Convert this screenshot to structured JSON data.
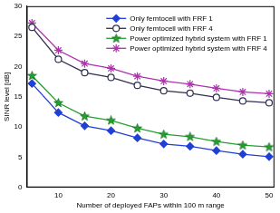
{
  "chart_data": {
    "type": "line",
    "x_label": "Number of deployed FAPs within 100 m range",
    "y_label": "SINR level [dB]",
    "x": [
      5,
      10,
      15,
      20,
      25,
      30,
      35,
      40,
      45,
      50
    ],
    "series": [
      {
        "name": "Only femtocell with FRF 1",
        "color": "#1f3fd6",
        "marker": "diamond",
        "values": [
          17.2,
          12.4,
          10.2,
          9.4,
          8.2,
          7.2,
          6.8,
          6.1,
          5.5,
          5.1
        ]
      },
      {
        "name": "Only femtocell with FRF 4",
        "color": "#303050",
        "marker": "open_circle",
        "values": [
          26.5,
          21.2,
          19.0,
          18.2,
          16.9,
          16.0,
          15.6,
          14.9,
          14.3,
          14.0
        ]
      },
      {
        "name": "Power optimized hybrid system with FRF 1",
        "color": "#22a030",
        "marker": "star",
        "values": [
          18.5,
          14.0,
          11.8,
          11.1,
          9.8,
          8.8,
          8.4,
          7.6,
          7.0,
          6.7
        ]
      },
      {
        "name": "Power optimized hybrid system with FRF 4",
        "color": "#b030b0",
        "marker": "asterisk",
        "values": [
          27.2,
          22.7,
          20.5,
          19.7,
          18.4,
          17.6,
          17.1,
          16.4,
          15.8,
          15.5
        ]
      }
    ],
    "xlim": [
      4,
      51
    ],
    "xticks": [
      10,
      20,
      30,
      40,
      50
    ],
    "ylim": [
      0,
      30
    ],
    "yticks": [
      0,
      5,
      10,
      15,
      20,
      25,
      30
    ],
    "grid": false,
    "legend": "upper right"
  }
}
